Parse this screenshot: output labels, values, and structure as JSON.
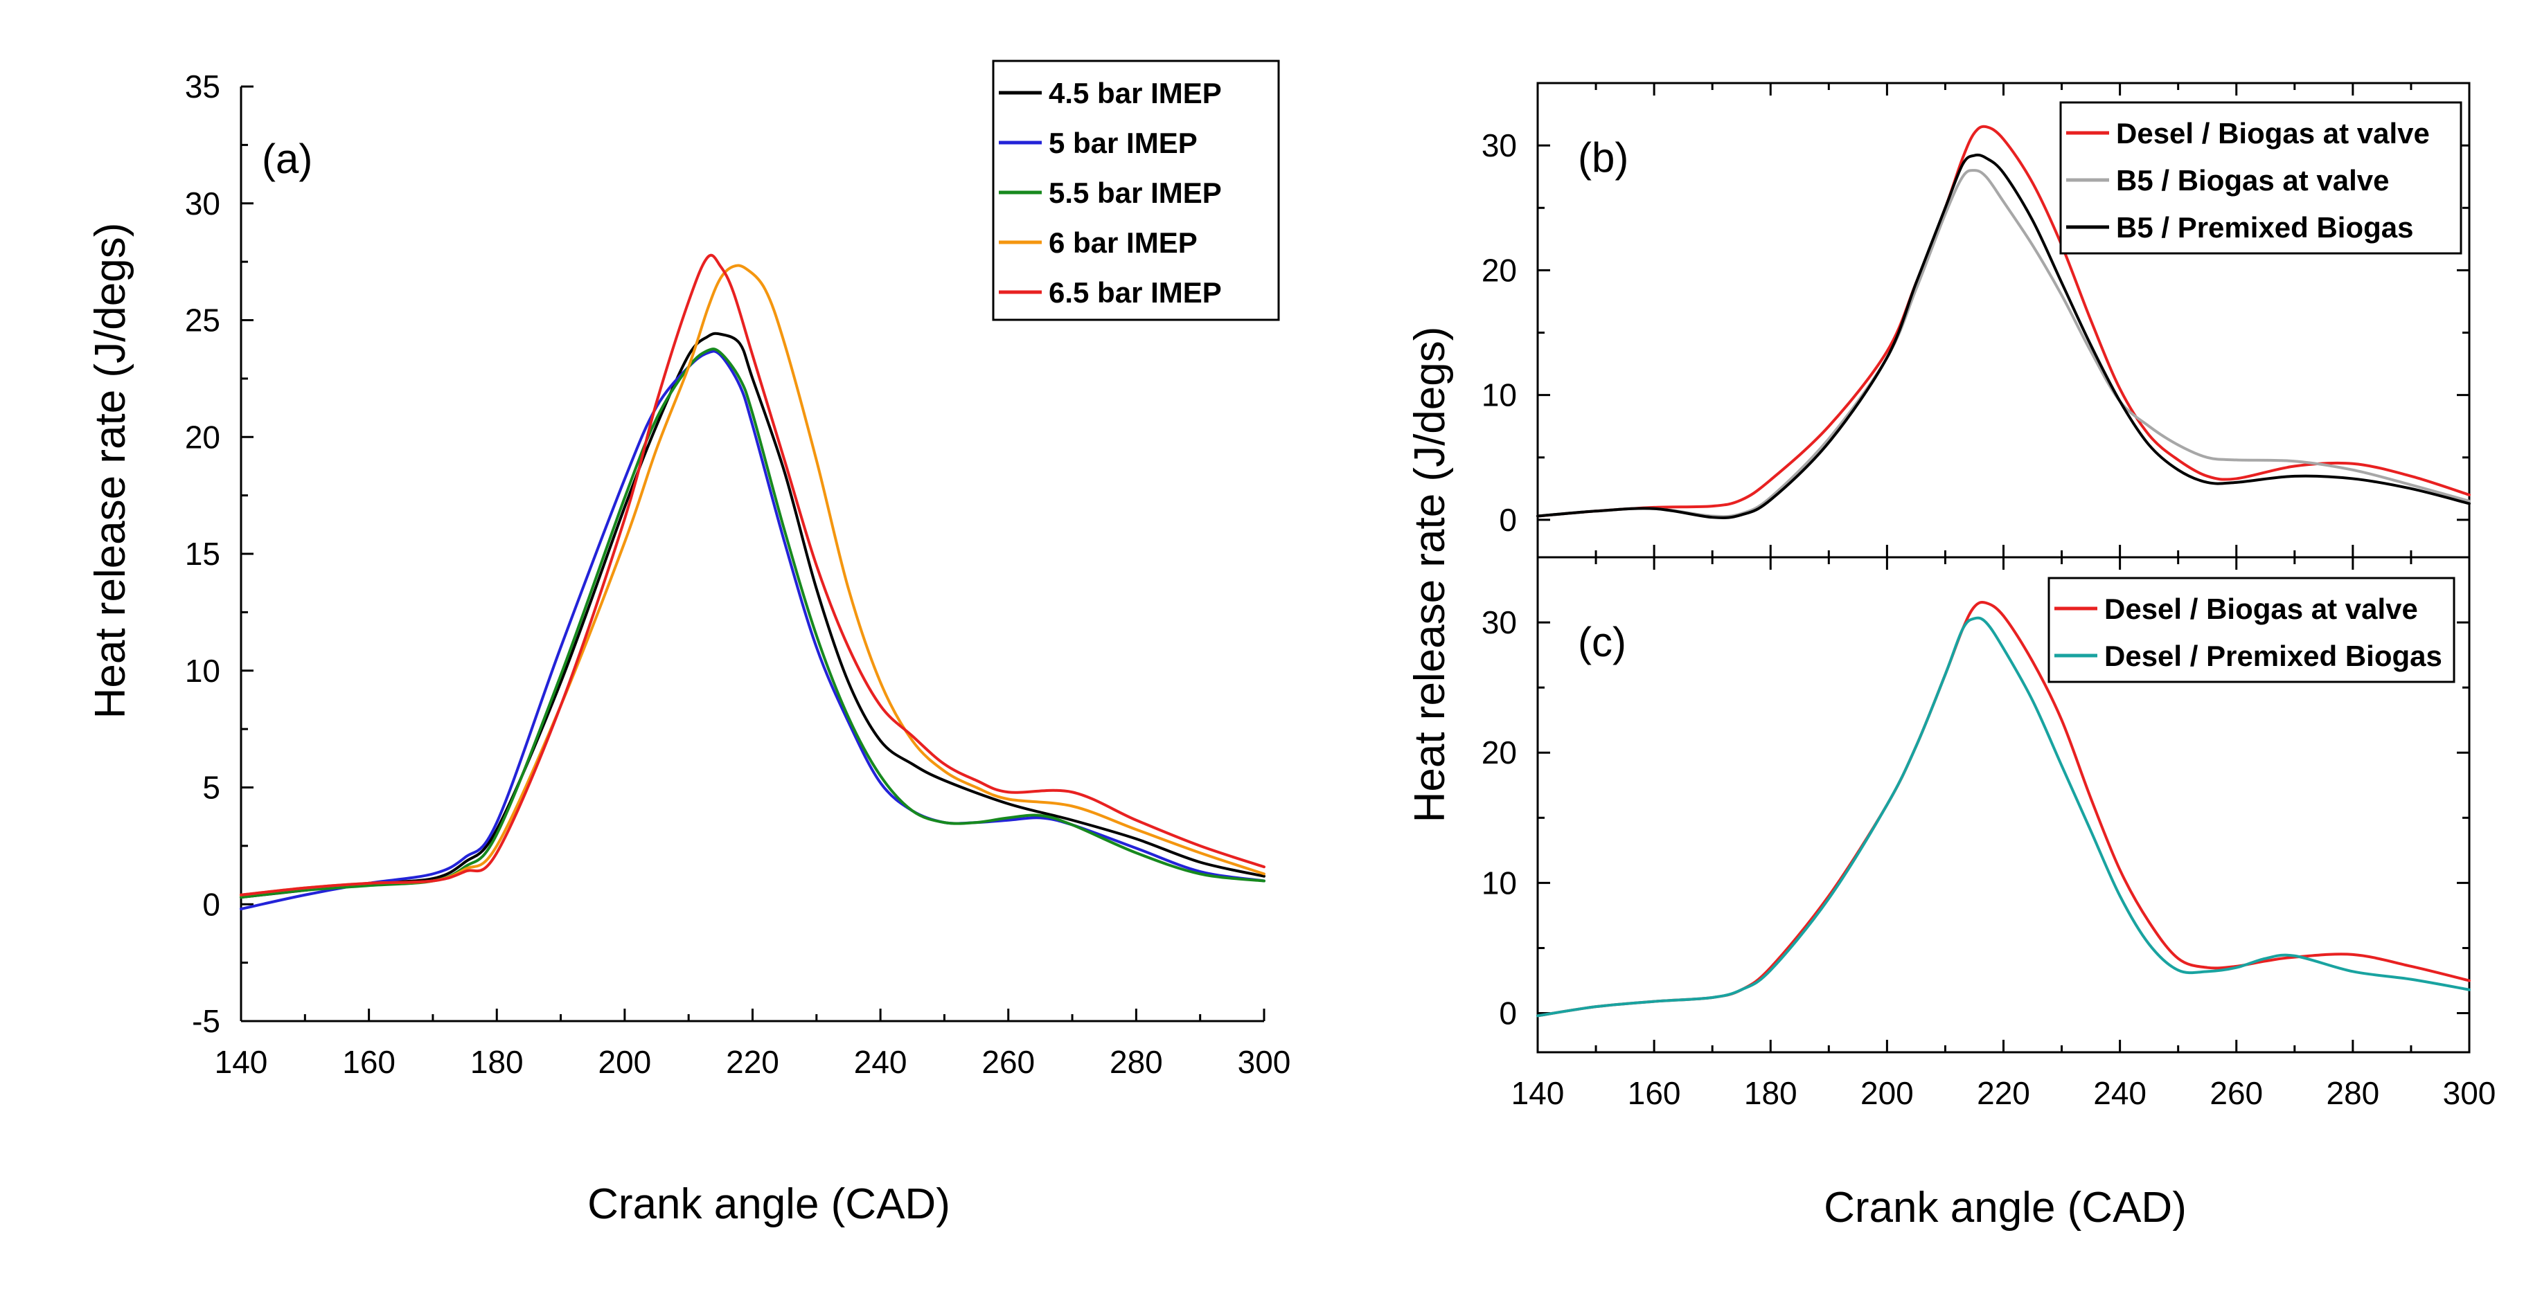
{
  "chart_data": [
    {
      "panel": "a",
      "type": "line",
      "panel_label": "(a)",
      "xlabel": "Crank angle (CAD)",
      "ylabel": "Heat release rate (J/degs)",
      "xlim": [
        140,
        300
      ],
      "ylim": [
        -5,
        35
      ],
      "xticks": [
        "140",
        "160",
        "180",
        "200",
        "220",
        "240",
        "260",
        "280",
        "300"
      ],
      "yticks": [
        "-5",
        "0",
        "5",
        "10",
        "15",
        "20",
        "25",
        "30",
        "35"
      ],
      "legend_position": "top-right",
      "series": [
        {
          "name": "4.5 bar IMEP",
          "color": "#000000",
          "x": [
            140,
            150,
            160,
            170,
            175,
            180,
            190,
            200,
            205,
            210,
            213,
            215,
            218,
            220,
            225,
            230,
            235,
            240,
            245,
            250,
            260,
            270,
            280,
            290,
            300
          ],
          "y": [
            0.3,
            0.6,
            0.9,
            1.1,
            1.8,
            3.2,
            9.5,
            17,
            20.5,
            23.5,
            24.3,
            24.4,
            24.0,
            22.5,
            18.5,
            13.5,
            9.5,
            7.0,
            6.0,
            5.3,
            4.3,
            3.6,
            2.8,
            1.8,
            1.2
          ]
        },
        {
          "name": "5 bar IMEP",
          "color": "#2323d8",
          "x": [
            140,
            150,
            160,
            170,
            175,
            180,
            190,
            200,
            205,
            210,
            213,
            215,
            218,
            220,
            225,
            230,
            235,
            240,
            245,
            250,
            255,
            260,
            265,
            270,
            280,
            290,
            300
          ],
          "y": [
            -0.2,
            0.4,
            0.9,
            1.3,
            2.0,
            3.5,
            11,
            18.2,
            21.3,
            23,
            23.6,
            23.5,
            22.2,
            20.5,
            15.5,
            11,
            7.8,
            5.2,
            4.0,
            3.5,
            3.5,
            3.6,
            3.7,
            3.4,
            2.4,
            1.4,
            1.0
          ]
        },
        {
          "name": "5.5 bar IMEP",
          "color": "#17891e",
          "x": [
            140,
            150,
            160,
            170,
            175,
            180,
            190,
            200,
            205,
            210,
            213,
            215,
            218,
            220,
            225,
            230,
            235,
            240,
            245,
            250,
            255,
            260,
            265,
            270,
            280,
            290,
            300
          ],
          "y": [
            0.3,
            0.6,
            0.8,
            1.0,
            1.6,
            3.0,
            9.8,
            17.4,
            20.8,
            23,
            23.7,
            23.6,
            22.5,
            21,
            16,
            11.5,
            8.0,
            5.5,
            4.0,
            3.5,
            3.5,
            3.7,
            3.8,
            3.4,
            2.2,
            1.3,
            1.0
          ]
        },
        {
          "name": "6 bar IMEP",
          "color": "#f4960f",
          "x": [
            140,
            150,
            160,
            170,
            175,
            180,
            190,
            200,
            205,
            210,
            213,
            215,
            217,
            219,
            222,
            225,
            230,
            235,
            240,
            245,
            250,
            255,
            260,
            270,
            280,
            290,
            300
          ],
          "y": [
            0.4,
            0.7,
            0.9,
            1.0,
            1.5,
            2.5,
            8.5,
            15.5,
            19.5,
            23,
            25.5,
            26.8,
            27.3,
            27.2,
            26.3,
            24.0,
            19.0,
            13.5,
            9.5,
            7.0,
            5.7,
            5.0,
            4.5,
            4.2,
            3.2,
            2.2,
            1.3
          ]
        },
        {
          "name": "6.5 bar IMEP",
          "color": "#e82121",
          "x": [
            140,
            150,
            160,
            170,
            175,
            180,
            190,
            200,
            205,
            210,
            213,
            215,
            217,
            220,
            225,
            230,
            235,
            240,
            245,
            250,
            255,
            260,
            270,
            280,
            290,
            300
          ],
          "y": [
            0.4,
            0.7,
            0.9,
            1.0,
            1.4,
            2.2,
            8.5,
            16.5,
            21.5,
            25.8,
            27.7,
            27.3,
            26.2,
            23.5,
            19.0,
            14.5,
            11.0,
            8.5,
            7.2,
            6.0,
            5.3,
            4.8,
            4.8,
            3.6,
            2.5,
            1.6
          ]
        }
      ]
    },
    {
      "panel": "b",
      "type": "line",
      "panel_label": "(b)",
      "xlim": [
        140,
        300
      ],
      "ylim": [
        -3,
        35
      ],
      "yticks": [
        "0",
        "10",
        "20",
        "30"
      ],
      "legend_position": "top-right",
      "series": [
        {
          "name": "Desel / Biogas at valve",
          "color": "#e82121",
          "x": [
            140,
            150,
            160,
            170,
            175,
            180,
            190,
            200,
            205,
            210,
            213,
            215,
            217,
            220,
            225,
            230,
            235,
            240,
            245,
            250,
            255,
            260,
            270,
            280,
            290,
            300
          ],
          "y": [
            0.3,
            0.7,
            1.0,
            1.1,
            1.6,
            3.2,
            7.5,
            13.5,
            19,
            25,
            29,
            31,
            31.5,
            30.5,
            27,
            22,
            16,
            10.5,
            6.8,
            4.8,
            3.5,
            3.3,
            4.3,
            4.5,
            3.5,
            2.0
          ]
        },
        {
          "name": "B5 / Biogas at valve",
          "color": "#a7a7a7",
          "x": [
            140,
            150,
            160,
            170,
            175,
            180,
            190,
            200,
            205,
            210,
            213,
            215,
            217,
            220,
            225,
            230,
            235,
            240,
            245,
            250,
            255,
            260,
            270,
            280,
            290,
            300
          ],
          "y": [
            0.3,
            0.7,
            0.9,
            0.3,
            0.5,
            1.8,
            6.5,
            13,
            18.5,
            24.5,
            27.5,
            28,
            27.5,
            25.5,
            22,
            18,
            13.5,
            9.5,
            7.5,
            6.0,
            5.0,
            4.8,
            4.7,
            4.0,
            2.8,
            1.5
          ]
        },
        {
          "name": "B5 / Premixed Biogas",
          "color": "#000000",
          "x": [
            140,
            150,
            160,
            170,
            175,
            180,
            190,
            200,
            205,
            210,
            213,
            215,
            217,
            220,
            225,
            230,
            235,
            240,
            245,
            250,
            255,
            260,
            270,
            280,
            290,
            300
          ],
          "y": [
            0.3,
            0.7,
            0.9,
            0.2,
            0.4,
            1.6,
            6.2,
            13,
            19,
            25,
            28.5,
            29.2,
            29,
            27.8,
            24,
            19,
            14,
            9.5,
            6.0,
            4.0,
            3.0,
            3.0,
            3.5,
            3.3,
            2.5,
            1.3
          ]
        }
      ]
    },
    {
      "panel": "c",
      "type": "line",
      "panel_label": "(c)",
      "xlabel": "Crank angle (CAD)",
      "xlim": [
        140,
        300
      ],
      "ylim": [
        -3,
        35
      ],
      "xticks": [
        "140",
        "160",
        "180",
        "200",
        "220",
        "240",
        "260",
        "280",
        "300"
      ],
      "yticks": [
        "0",
        "10",
        "20",
        "30"
      ],
      "shared_ylabel": "Heat release rate (J/degs)",
      "legend_position": "top-right",
      "series": [
        {
          "name": "Desel / Biogas at valve",
          "color": "#e82121",
          "x": [
            140,
            150,
            160,
            170,
            175,
            180,
            190,
            200,
            205,
            210,
            213,
            215,
            217,
            220,
            225,
            230,
            235,
            240,
            245,
            250,
            255,
            260,
            265,
            270,
            280,
            290,
            300
          ],
          "y": [
            -0.2,
            0.5,
            0.9,
            1.2,
            1.8,
            3.5,
            9,
            16,
            20.5,
            26,
            29.5,
            31.2,
            31.5,
            30.5,
            27,
            22.5,
            16.5,
            11,
            7,
            4.2,
            3.5,
            3.6,
            4.0,
            4.3,
            4.5,
            3.6,
            2.5
          ]
        },
        {
          "name": "Desel / Premixed Biogas",
          "color": "#19a3a0",
          "x": [
            140,
            150,
            160,
            170,
            175,
            180,
            190,
            200,
            205,
            210,
            213,
            215,
            217,
            220,
            225,
            230,
            235,
            240,
            245,
            250,
            255,
            260,
            265,
            270,
            280,
            290,
            300
          ],
          "y": [
            -0.2,
            0.5,
            0.9,
            1.2,
            1.8,
            3.3,
            8.8,
            16,
            20.5,
            26,
            29.5,
            30.3,
            30,
            28,
            24,
            19,
            14,
            9,
            5.3,
            3.3,
            3.2,
            3.5,
            4.2,
            4.4,
            3.2,
            2.6,
            1.8
          ]
        }
      ]
    }
  ]
}
